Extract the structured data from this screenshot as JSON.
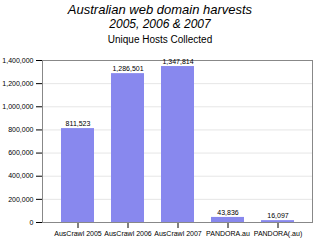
{
  "chart_data": {
    "type": "bar",
    "title": "Australian web domain harvests",
    "subtitle": "2005, 2006 & 2007",
    "annotations": [
      "Unique Hosts Collected"
    ],
    "categories": [
      "AusCrawl 2005",
      "AusCrawl 2006",
      "AusCrawl 2007",
      "PANDORA.au",
      "PANDORA(.au)"
    ],
    "values": [
      811523,
      1286501,
      1347814,
      43836,
      16097
    ],
    "value_labels": [
      "811,523",
      "1,286,501",
      "1,347,814",
      "43,836",
      "16,097"
    ],
    "data_labels": true,
    "color": "#8888EE",
    "ylim": [
      0,
      1400000
    ],
    "yticks": [
      0,
      {
        "value": 200000,
        "label": "200,000"
      },
      {
        "value": 400000,
        "label": "400,000"
      },
      {
        "value": 600000,
        "label": "600,000"
      },
      {
        "value": 800000,
        "label": "800,000"
      },
      {
        "value": 1000000,
        "label": "1,000,000"
      },
      {
        "value": 1200000,
        "label": "1,200,000"
      },
      {
        "value": 1400000,
        "label": "1,400,000"
      }
    ],
    "grid": true
  }
}
